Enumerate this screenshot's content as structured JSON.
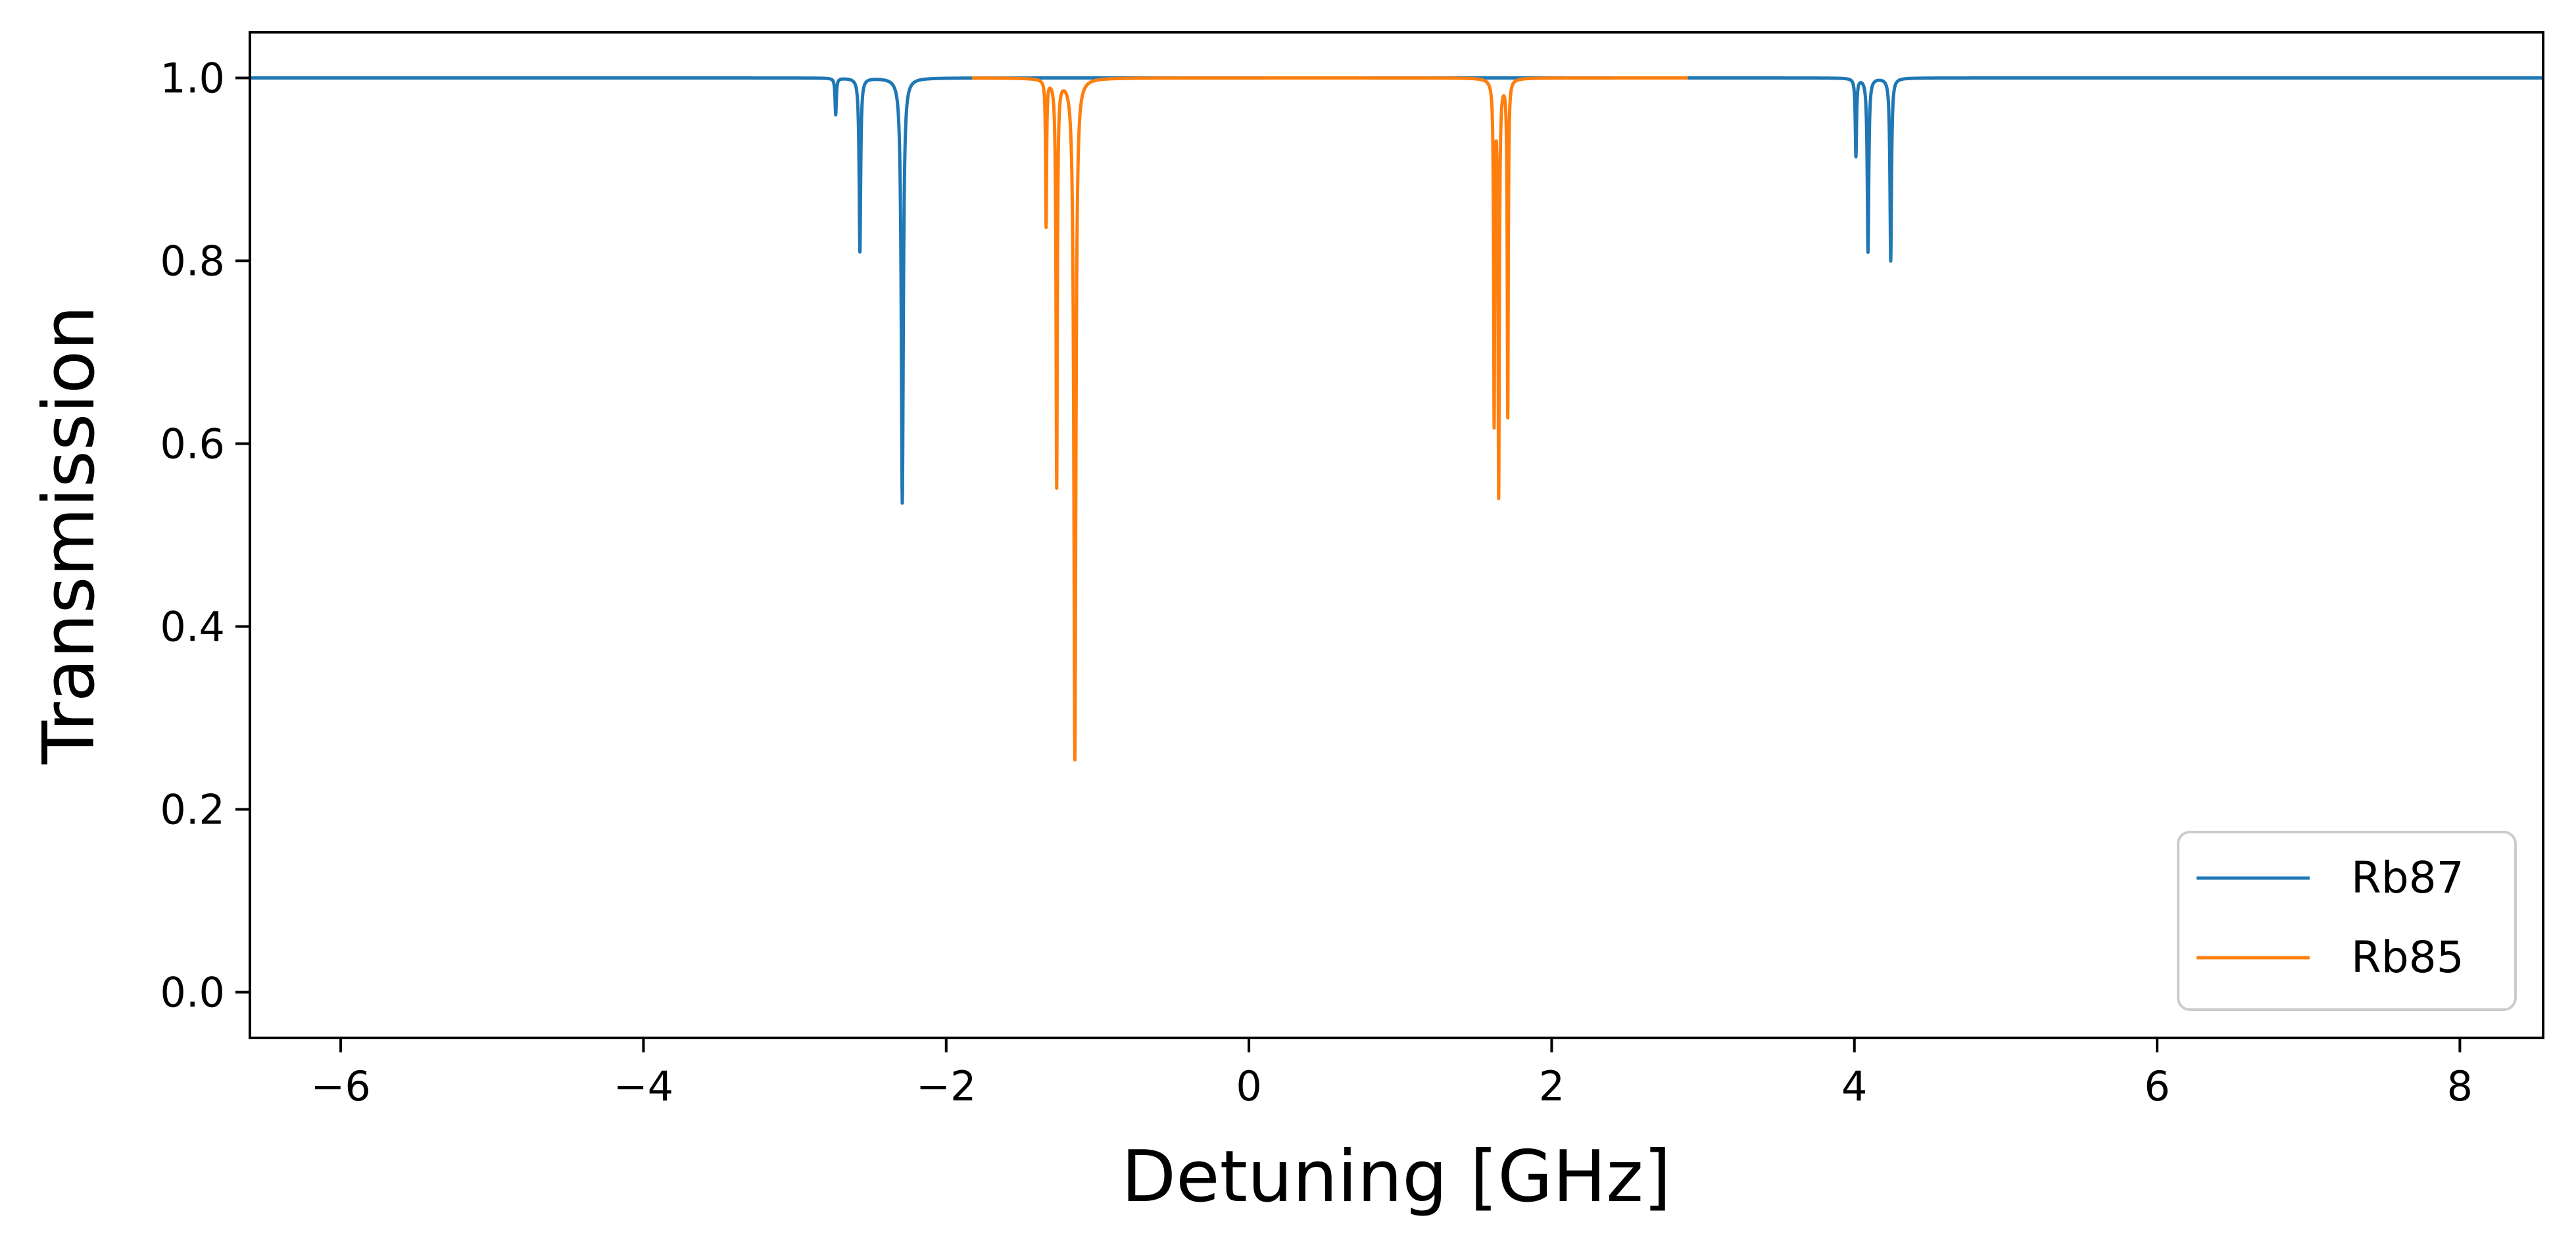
{
  "chart_data": {
    "type": "line",
    "title": "",
    "xlabel": "Detuning [GHz]",
    "ylabel": "Transmission",
    "xlim": [
      -6.6,
      8.55
    ],
    "ylim": [
      -0.05,
      1.05
    ],
    "xticks": [
      -6,
      -4,
      -2,
      0,
      2,
      4,
      6,
      8
    ],
    "xtick_labels": [
      "−6",
      "−4",
      "−2",
      "0",
      "2",
      "4",
      "6",
      "8"
    ],
    "yticks": [
      0.0,
      0.2,
      0.4,
      0.6,
      0.8,
      1.0
    ],
    "ytick_labels": [
      "0.0",
      "0.2",
      "0.4",
      "0.6",
      "0.8",
      "1.0"
    ],
    "grid": false,
    "legend": {
      "position": "lower-right"
    },
    "series": [
      {
        "name": "Rb87",
        "color": "#1f77b4",
        "x_range": [
          -6.6,
          8.55
        ],
        "baseline": 1.0,
        "dips": [
          {
            "center": -2.73,
            "min": 0.96,
            "width": 0.01
          },
          {
            "center": -2.57,
            "min": 0.81,
            "width": 0.012
          },
          {
            "center": -2.29,
            "min": 0.535,
            "width": 0.016
          },
          {
            "center": 4.01,
            "min": 0.915,
            "width": 0.01
          },
          {
            "center": 4.09,
            "min": 0.81,
            "width": 0.012
          },
          {
            "center": 4.24,
            "min": 0.8,
            "width": 0.012
          }
        ]
      },
      {
        "name": "Rb85",
        "color": "#ff7f0e",
        "x_range": [
          -1.83,
          2.9
        ],
        "baseline": 1.0,
        "dips": [
          {
            "center": -1.34,
            "min": 0.84,
            "width": 0.008
          },
          {
            "center": -1.27,
            "min": 0.555,
            "width": 0.01
          },
          {
            "center": -1.15,
            "min": 0.255,
            "width": 0.016
          },
          {
            "center": 1.62,
            "min": 0.63,
            "width": 0.008
          },
          {
            "center": 1.65,
            "min": 0.548,
            "width": 0.01
          },
          {
            "center": 1.71,
            "min": 0.632,
            "width": 0.008
          }
        ]
      }
    ]
  }
}
